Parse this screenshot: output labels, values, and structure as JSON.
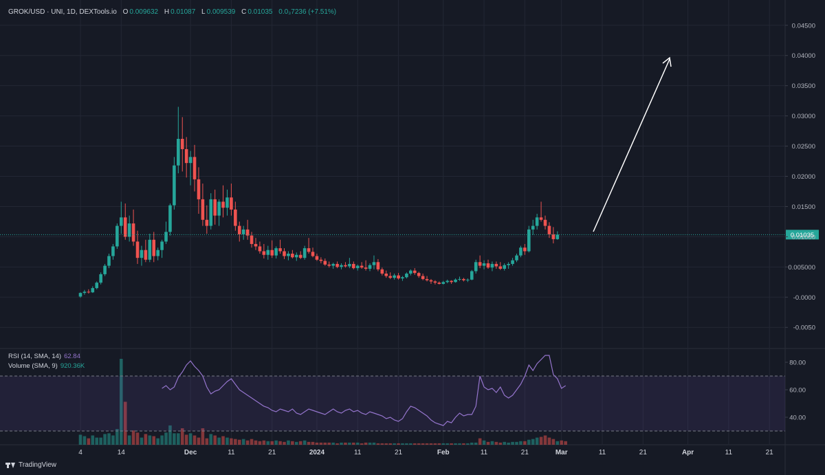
{
  "legend": {
    "symbol": "GROK/USD · UNI, 1D, DEXTools.io",
    "o_label": "O",
    "o": "0.009632",
    "h_label": "H",
    "h": "0.01087",
    "l_label": "L",
    "l": "0.009539",
    "c_label": "C",
    "c": "0.01035",
    "change": "0.0₃7236 (+7.51%)"
  },
  "indicators": {
    "rsi_label": "RSI (14, SMA, 14)",
    "rsi_value": "62.84",
    "vol_label": "Volume (SMA, 9)",
    "vol_value": "920.36K"
  },
  "branding": {
    "label": "TradingView"
  },
  "colors": {
    "up": "#26a69a",
    "down": "#ef5350",
    "rsi": "#9575cd",
    "background": "#161a25"
  },
  "chart_data": [
    {
      "type": "candlestick",
      "title": "GROK/USD · UNI, 1D, DEXTools.io",
      "current_price": 0.01035,
      "current_price_label": "0.01035",
      "y_ticks": [
        {
          "value": 0.045,
          "label": "0.04500"
        },
        {
          "value": 0.04,
          "label": "0.04000"
        },
        {
          "value": 0.035,
          "label": "0.03500"
        },
        {
          "value": 0.03,
          "label": "0.03000"
        },
        {
          "value": 0.025,
          "label": "0.02500"
        },
        {
          "value": 0.02,
          "label": "0.02000"
        },
        {
          "value": 0.015,
          "label": "0.01500"
        },
        {
          "value": 0.01,
          "label": "0.01000"
        },
        {
          "value": 0.005,
          "label": "0.005000"
        },
        {
          "value": 0.0,
          "label": "-0.0000"
        },
        {
          "value": -0.005,
          "label": "-0.0050"
        }
      ],
      "ylim": [
        -0.0085,
        0.0485
      ],
      "x_ticks": [
        {
          "day": 0,
          "label": "4"
        },
        {
          "day": 10,
          "label": "14"
        },
        {
          "day": 27,
          "label": "Dec",
          "bold": true
        },
        {
          "day": 37,
          "label": "11"
        },
        {
          "day": 47,
          "label": "21"
        },
        {
          "day": 58,
          "label": "2024",
          "bold": true
        },
        {
          "day": 68,
          "label": "11"
        },
        {
          "day": 78,
          "label": "21"
        },
        {
          "day": 89,
          "label": "Feb",
          "bold": true
        },
        {
          "day": 99,
          "label": "11"
        },
        {
          "day": 109,
          "label": "21"
        },
        {
          "day": 118,
          "label": "Mar",
          "bold": true
        },
        {
          "day": 128,
          "label": "11"
        },
        {
          "day": 138,
          "label": "21"
        },
        {
          "day": 149,
          "label": "Apr",
          "bold": true
        },
        {
          "day": 159,
          "label": "11"
        },
        {
          "day": 169,
          "label": "21"
        }
      ],
      "candles": [
        [
          0.0001,
          0.0008,
          -0.0001,
          0.0007
        ],
        [
          0.0007,
          0.0012,
          0.0004,
          0.0009
        ],
        [
          0.0009,
          0.0013,
          0.0006,
          0.0008
        ],
        [
          0.0008,
          0.0018,
          0.0007,
          0.0015
        ],
        [
          0.0015,
          0.0026,
          0.0013,
          0.0024
        ],
        [
          0.0024,
          0.0041,
          0.0021,
          0.0038
        ],
        [
          0.0038,
          0.0055,
          0.0035,
          0.0052
        ],
        [
          0.0052,
          0.0072,
          0.0048,
          0.0068
        ],
        [
          0.0068,
          0.0088,
          0.0062,
          0.0084
        ],
        [
          0.0084,
          0.0122,
          0.008,
          0.0118
        ],
        [
          0.0118,
          0.0158,
          0.0105,
          0.0132
        ],
        [
          0.0132,
          0.0155,
          0.0095,
          0.01
        ],
        [
          0.01,
          0.0135,
          0.0092,
          0.0122
        ],
        [
          0.0122,
          0.0145,
          0.0085,
          0.0092
        ],
        [
          0.0092,
          0.011,
          0.0055,
          0.0065
        ],
        [
          0.0065,
          0.0085,
          0.0052,
          0.0078
        ],
        [
          0.0078,
          0.0095,
          0.0058,
          0.0062
        ],
        [
          0.0062,
          0.0105,
          0.0058,
          0.0095
        ],
        [
          0.0095,
          0.0108,
          0.0058,
          0.0068
        ],
        [
          0.0068,
          0.0082,
          0.0061,
          0.0078
        ],
        [
          0.0078,
          0.0095,
          0.0065,
          0.0092
        ],
        [
          0.0092,
          0.0125,
          0.0088,
          0.0108
        ],
        [
          0.0108,
          0.0155,
          0.0102,
          0.0152
        ],
        [
          0.0152,
          0.0232,
          0.0145,
          0.0218
        ],
        [
          0.0218,
          0.0315,
          0.0205,
          0.0262
        ],
        [
          0.0262,
          0.0298,
          0.0208,
          0.0245
        ],
        [
          0.0245,
          0.0265,
          0.0198,
          0.0222
        ],
        [
          0.0222,
          0.0242,
          0.0185,
          0.0232
        ],
        [
          0.0232,
          0.0252,
          0.0175,
          0.0195
        ],
        [
          0.0195,
          0.0215,
          0.0138,
          0.0162
        ],
        [
          0.0162,
          0.0188,
          0.0118,
          0.0128
        ],
        [
          0.0128,
          0.0152,
          0.0105,
          0.0118
        ],
        [
          0.0118,
          0.0172,
          0.0112,
          0.0162
        ],
        [
          0.0162,
          0.0178,
          0.012,
          0.0135
        ],
        [
          0.0135,
          0.0162,
          0.0118,
          0.0158
        ],
        [
          0.0158,
          0.0185,
          0.0132,
          0.0148
        ],
        [
          0.0148,
          0.0178,
          0.0135,
          0.0165
        ],
        [
          0.0165,
          0.0188,
          0.0135,
          0.0145
        ],
        [
          0.0145,
          0.0158,
          0.011,
          0.0118
        ],
        [
          0.0118,
          0.0125,
          0.0092,
          0.0104
        ],
        [
          0.0104,
          0.0118,
          0.0095,
          0.0112
        ],
        [
          0.0112,
          0.0128,
          0.0095,
          0.0102
        ],
        [
          0.0102,
          0.0108,
          0.0082,
          0.0088
        ],
        [
          0.0088,
          0.0098,
          0.0078,
          0.0084
        ],
        [
          0.0084,
          0.0092,
          0.0072,
          0.0076
        ],
        [
          0.0076,
          0.0088,
          0.0064,
          0.007
        ],
        [
          0.007,
          0.0085,
          0.0062,
          0.0078
        ],
        [
          0.0078,
          0.0094,
          0.0065,
          0.0069
        ],
        [
          0.0069,
          0.0084,
          0.0064,
          0.0081
        ],
        [
          0.0081,
          0.0095,
          0.0072,
          0.0076
        ],
        [
          0.0076,
          0.0081,
          0.0063,
          0.0068
        ],
        [
          0.0068,
          0.0076,
          0.0061,
          0.0072
        ],
        [
          0.0072,
          0.0078,
          0.0064,
          0.0066
        ],
        [
          0.0066,
          0.0074,
          0.006,
          0.007
        ],
        [
          0.007,
          0.0076,
          0.0063,
          0.0065
        ],
        [
          0.0065,
          0.0085,
          0.0062,
          0.0081
        ],
        [
          0.0081,
          0.0098,
          0.0072,
          0.0075
        ],
        [
          0.0075,
          0.0082,
          0.0066,
          0.0068
        ],
        [
          0.0068,
          0.0072,
          0.006,
          0.0062
        ],
        [
          0.0062,
          0.0066,
          0.0056,
          0.006
        ],
        [
          0.006,
          0.0064,
          0.0052,
          0.0054
        ],
        [
          0.0054,
          0.0059,
          0.0049,
          0.0052
        ],
        [
          0.0052,
          0.0057,
          0.0047,
          0.0055
        ],
        [
          0.0055,
          0.0059,
          0.0048,
          0.005
        ],
        [
          0.005,
          0.0056,
          0.0046,
          0.0053
        ],
        [
          0.0053,
          0.0058,
          0.0049,
          0.0051
        ],
        [
          0.0051,
          0.0065,
          0.0048,
          0.0055
        ],
        [
          0.0055,
          0.0059,
          0.0046,
          0.0048
        ],
        [
          0.0048,
          0.0054,
          0.0044,
          0.0052
        ],
        [
          0.0052,
          0.0058,
          0.0047,
          0.0049
        ],
        [
          0.0049,
          0.0061,
          0.0044,
          0.0047
        ],
        [
          0.0047,
          0.0056,
          0.0043,
          0.0053
        ],
        [
          0.0053,
          0.0069,
          0.0046,
          0.0058
        ],
        [
          0.0058,
          0.0063,
          0.0043,
          0.0046
        ],
        [
          0.0046,
          0.0049,
          0.0036,
          0.0039
        ],
        [
          0.0039,
          0.0044,
          0.0032,
          0.0035
        ],
        [
          0.0035,
          0.0041,
          0.003,
          0.0032
        ],
        [
          0.0032,
          0.0039,
          0.0029,
          0.0036
        ],
        [
          0.0036,
          0.004,
          0.0029,
          0.0031
        ],
        [
          0.0031,
          0.0035,
          0.0027,
          0.0033
        ],
        [
          0.0033,
          0.0041,
          0.0031,
          0.0039
        ],
        [
          0.0039,
          0.0046,
          0.0036,
          0.0044
        ],
        [
          0.0044,
          0.0048,
          0.0037,
          0.004
        ],
        [
          0.004,
          0.0042,
          0.0032,
          0.0035
        ],
        [
          0.0035,
          0.0039,
          0.0028,
          0.003
        ],
        [
          0.003,
          0.0035,
          0.0026,
          0.0028
        ],
        [
          0.0028,
          0.003,
          0.0022,
          0.0026
        ],
        [
          0.0026,
          0.0028,
          0.0021,
          0.0024
        ],
        [
          0.0024,
          0.0026,
          0.0021,
          0.0022
        ],
        [
          0.0022,
          0.0027,
          0.0021,
          0.0025
        ],
        [
          0.0025,
          0.0029,
          0.0023,
          0.0027
        ],
        [
          0.0027,
          0.0028,
          0.0022,
          0.0025
        ],
        [
          0.0025,
          0.0031,
          0.0024,
          0.0029
        ],
        [
          0.0029,
          0.0034,
          0.0027,
          0.003
        ],
        [
          0.003,
          0.0032,
          0.0026,
          0.0028
        ],
        [
          0.0028,
          0.0031,
          0.0025,
          0.0029
        ],
        [
          0.0029,
          0.0045,
          0.0028,
          0.0043
        ],
        [
          0.0043,
          0.0062,
          0.0039,
          0.0058
        ],
        [
          0.0058,
          0.0069,
          0.0048,
          0.0052
        ],
        [
          0.0052,
          0.0061,
          0.0046,
          0.0056
        ],
        [
          0.0056,
          0.0062,
          0.0047,
          0.0049
        ],
        [
          0.0049,
          0.0059,
          0.0043,
          0.0055
        ],
        [
          0.0055,
          0.0059,
          0.0047,
          0.0051
        ],
        [
          0.0051,
          0.0058,
          0.0045,
          0.0047
        ],
        [
          0.0047,
          0.0056,
          0.0044,
          0.0053
        ],
        [
          0.0053,
          0.0058,
          0.0047,
          0.0055
        ],
        [
          0.0055,
          0.0065,
          0.0052,
          0.0061
        ],
        [
          0.0061,
          0.0072,
          0.0058,
          0.0069
        ],
        [
          0.0069,
          0.0085,
          0.0066,
          0.0082
        ],
        [
          0.0082,
          0.0088,
          0.007,
          0.0076
        ],
        [
          0.0076,
          0.0118,
          0.0074,
          0.0112
        ],
        [
          0.0112,
          0.0128,
          0.0103,
          0.0118
        ],
        [
          0.0118,
          0.0138,
          0.0112,
          0.0132
        ],
        [
          0.0132,
          0.0158,
          0.0125,
          0.0128
        ],
        [
          0.0128,
          0.0135,
          0.0112,
          0.0118
        ],
        [
          0.0118,
          0.0124,
          0.0098,
          0.0104
        ],
        [
          0.0104,
          0.0116,
          0.0089,
          0.0096
        ],
        [
          0.0096,
          0.0109,
          0.0095,
          0.01035
        ]
      ],
      "rsi": [
        null,
        null,
        null,
        null,
        null,
        null,
        null,
        null,
        null,
        null,
        null,
        null,
        null,
        null,
        null,
        null,
        null,
        null,
        null,
        null,
        61,
        63,
        60,
        62,
        69,
        73,
        78,
        81,
        77,
        74,
        70,
        62,
        57,
        59,
        60,
        63,
        66,
        68,
        64,
        60,
        58,
        56,
        54,
        52,
        50,
        48,
        47,
        45,
        44,
        46,
        45,
        44,
        46,
        43,
        42,
        44,
        46,
        45,
        44,
        43,
        42,
        44,
        46,
        44,
        43,
        45,
        46,
        44,
        45,
        43,
        42,
        44,
        43,
        42,
        41,
        39,
        40,
        38,
        37,
        39,
        44,
        48,
        47,
        45,
        43,
        41,
        38,
        36,
        35,
        34,
        37,
        36,
        40,
        43,
        41,
        42,
        42,
        48,
        70,
        62,
        60,
        61,
        58,
        62,
        56,
        54,
        56,
        60,
        64,
        70,
        78,
        74,
        79,
        82,
        85,
        85,
        71,
        68,
        61,
        63
      ],
      "rsi_range": [
        20,
        90
      ],
      "rsi_ticks": [
        {
          "value": 80,
          "label": "80.00"
        },
        {
          "value": 60,
          "label": "60.00"
        },
        {
          "value": 40,
          "label": "40.00"
        }
      ],
      "rsi_bands": [
        70,
        30
      ],
      "volume_max_k": 12000,
      "volume_k": [
        1400,
        1200,
        900,
        1300,
        1000,
        1000,
        1500,
        1600,
        1300,
        2200,
        12000,
        6000,
        1300,
        2000,
        1700,
        1000,
        1500,
        1300,
        1200,
        900,
        1300,
        1700,
        2700,
        1600,
        1600,
        2300,
        1400,
        1600,
        1300,
        1000,
        2300,
        900,
        1500,
        1300,
        1000,
        1200,
        1000,
        900,
        800,
        700,
        800,
        600,
        800,
        600,
        500,
        600,
        500,
        500,
        600,
        500,
        400,
        600,
        500,
        400,
        500,
        600,
        400,
        400,
        300,
        300,
        300,
        300,
        300,
        200,
        300,
        300,
        300,
        300,
        300,
        200,
        300,
        300,
        300,
        200,
        200,
        200,
        200,
        200,
        200,
        200,
        200,
        200,
        200,
        200,
        200,
        200,
        200,
        200,
        200,
        200,
        200,
        200,
        200,
        200,
        200,
        200,
        300,
        300,
        900,
        600,
        400,
        500,
        400,
        300,
        400,
        300,
        400,
        400,
        500,
        500,
        700,
        800,
        1000,
        1100,
        1300,
        1000,
        800,
        500,
        600,
        500
      ]
    }
  ]
}
